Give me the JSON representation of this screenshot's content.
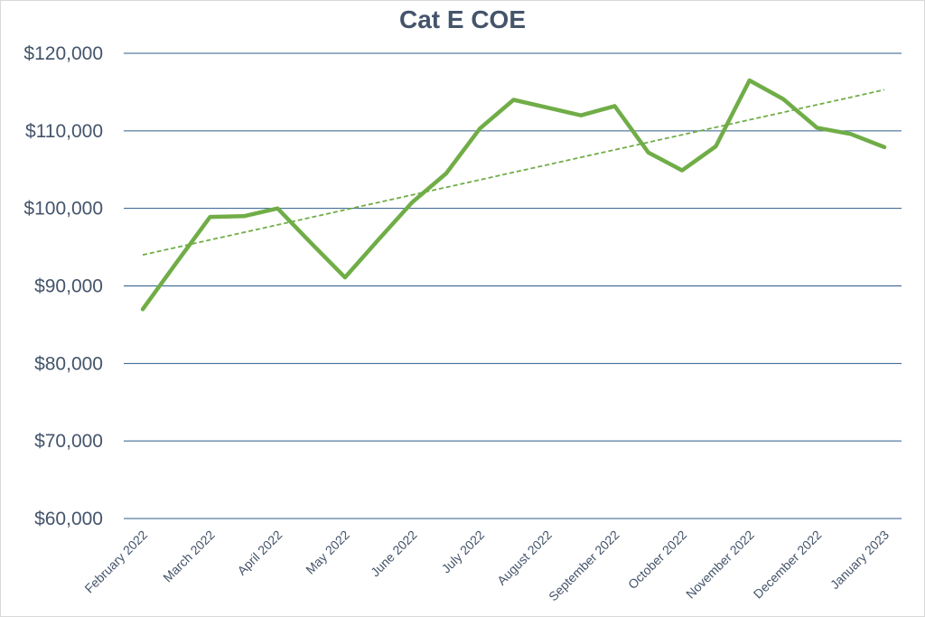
{
  "chart_data": {
    "type": "line",
    "title": "Cat E COE",
    "xlabel": "",
    "ylabel": "",
    "categories": [
      "February 2022",
      "",
      "March 2022",
      "",
      "April 2022",
      "",
      "May 2022",
      "",
      "June 2022",
      "",
      "July 2022",
      "",
      "August 2022",
      "",
      "September 2022",
      "",
      "October 2022",
      "",
      "November 2022",
      "",
      "December 2022",
      "",
      "January 2023"
    ],
    "series": [
      {
        "values": [
          87000,
          93000,
          98900,
          99000,
          100000,
          95500,
          91100,
          96000,
          100800,
          104500,
          110300,
          114000,
          113000,
          112000,
          113200,
          107200,
          104900,
          108000,
          116500,
          114100,
          110400,
          109600,
          107900
        ],
        "color": "#70ad47"
      }
    ],
    "trendline": {
      "type": "linear",
      "style": "dashed",
      "color": "#70ad47"
    },
    "ylim": [
      60000,
      120000
    ],
    "yticks": [
      60000,
      70000,
      80000,
      90000,
      100000,
      110000,
      120000
    ],
    "ytick_labels": [
      "$60,000",
      "$70,000",
      "$80,000",
      "$90,000",
      "$100,000",
      "$110,000",
      "$120,000"
    ],
    "grid": true,
    "gridline_color": "#2e5c8a",
    "legend": "none"
  }
}
